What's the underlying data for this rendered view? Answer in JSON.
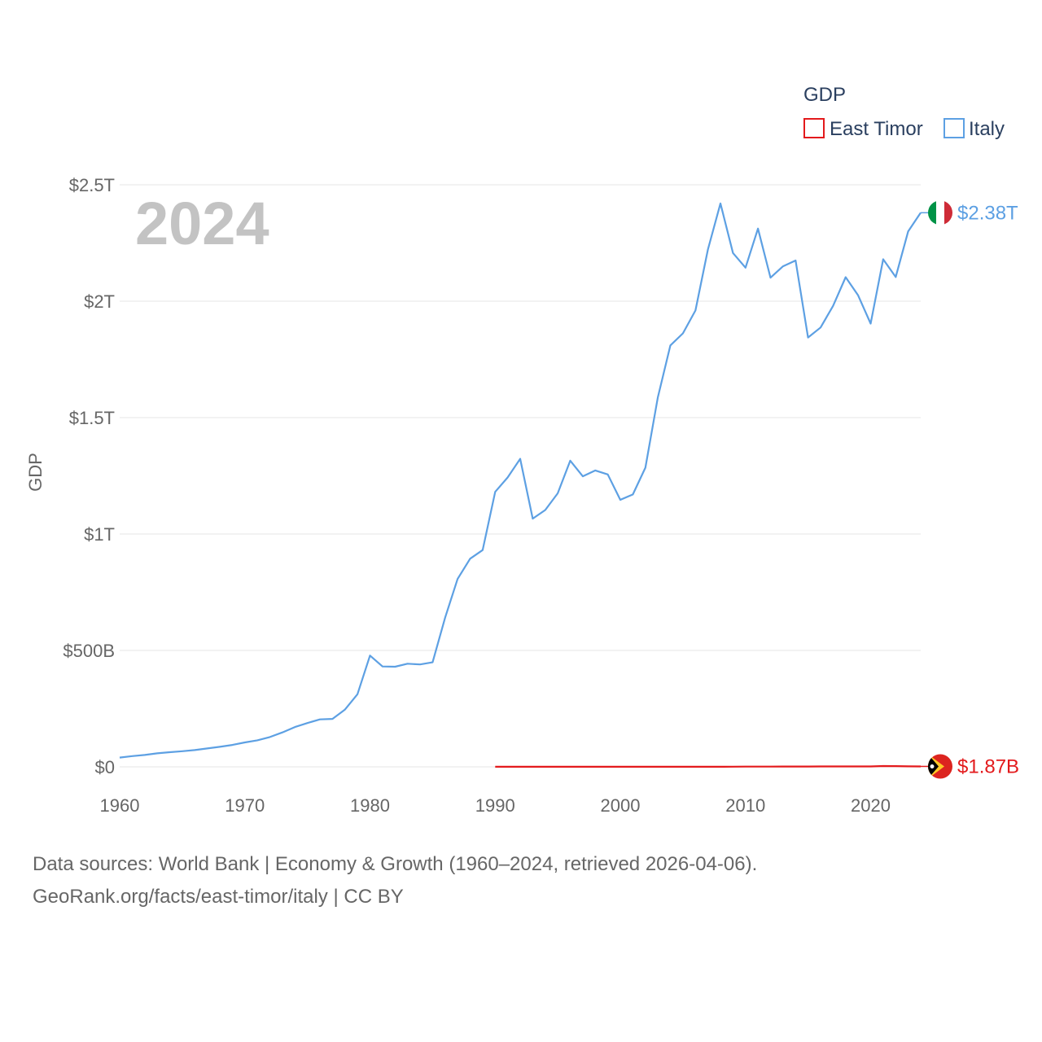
{
  "chart_data": {
    "type": "line",
    "title": "",
    "ylabel": "GDP",
    "xlabel": "",
    "legend_title": "GDP",
    "legend_position": "top-right",
    "year_label": "2024",
    "x_ticks": [
      1960,
      1970,
      1980,
      1990,
      2000,
      2010,
      2020
    ],
    "x_tick_labels": [
      "1960",
      "1970",
      "1980",
      "1990",
      "2000",
      "2010",
      "2020"
    ],
    "xlim": [
      1960,
      2024
    ],
    "y_ticks": [
      0,
      500,
      1000,
      1500,
      2000,
      2500
    ],
    "y_tick_labels": [
      "$0",
      "$500B",
      "$1T",
      "$1.5T",
      "$2T",
      "$2.5T"
    ],
    "ylim": [
      0,
      2500
    ],
    "y_unit": "billion USD",
    "series": [
      {
        "name": "East Timor",
        "color": "#e31a1c",
        "end_label": "$1.87B",
        "icon": "east-timor-flag-icon",
        "x": [
          1990,
          1991,
          1992,
          1993,
          1994,
          1995,
          1996,
          1997,
          1998,
          1999,
          2000,
          2001,
          2002,
          2003,
          2004,
          2005,
          2006,
          2007,
          2008,
          2009,
          2010,
          2011,
          2012,
          2013,
          2014,
          2015,
          2016,
          2017,
          2018,
          2019,
          2020,
          2021,
          2022,
          2023,
          2024
        ],
        "values": [
          0.2,
          0.2,
          0.2,
          0.2,
          0.3,
          0.3,
          0.3,
          0.3,
          0.3,
          0.3,
          0.4,
          0.4,
          0.4,
          0.4,
          0.4,
          0.4,
          0.4,
          0.5,
          0.5,
          0.6,
          0.9,
          1.0,
          1.1,
          1.3,
          1.4,
          1.5,
          1.6,
          1.6,
          1.6,
          1.8,
          1.9,
          3.6,
          3.2,
          2.2,
          1.87
        ]
      },
      {
        "name": "Italy",
        "color": "#5da0e3",
        "end_label": "$2.38T",
        "icon": "italy-flag-icon",
        "x": [
          1960,
          1961,
          1962,
          1963,
          1964,
          1965,
          1966,
          1967,
          1968,
          1969,
          1970,
          1971,
          1972,
          1973,
          1974,
          1975,
          1976,
          1977,
          1978,
          1979,
          1980,
          1981,
          1982,
          1983,
          1984,
          1985,
          1986,
          1987,
          1988,
          1989,
          1990,
          1991,
          1992,
          1993,
          1994,
          1995,
          1996,
          1997,
          1998,
          1999,
          2000,
          2001,
          2002,
          2003,
          2004,
          2005,
          2006,
          2007,
          2008,
          2009,
          2010,
          2011,
          2012,
          2013,
          2014,
          2015,
          2016,
          2017,
          2018,
          2019,
          2020,
          2021,
          2022,
          2023,
          2024
        ],
        "values": [
          40,
          46,
          51,
          58,
          63,
          67,
          72,
          79,
          86,
          94,
          105,
          114,
          128,
          148,
          171,
          188,
          204,
          206,
          246,
          312,
          478,
          431,
          430,
          443,
          440,
          449,
          641,
          807,
          894,
          931,
          1181,
          1243,
          1323,
          1066,
          1103,
          1175,
          1315,
          1248,
          1273,
          1256,
          1147,
          1170,
          1285,
          1587,
          1810,
          1862,
          1960,
          2222,
          2420,
          2207,
          2144,
          2312,
          2101,
          2150,
          2175,
          1844,
          1887,
          1980,
          2103,
          2025,
          1904,
          2180,
          2104,
          2300,
          2380
        ]
      }
    ]
  },
  "footer": {
    "line1": "Data sources: World Bank | Economy & Growth (1960–2024, retrieved 2026-04-06).",
    "line2": "GeoRank.org/facts/east-timor/italy | CC BY"
  }
}
